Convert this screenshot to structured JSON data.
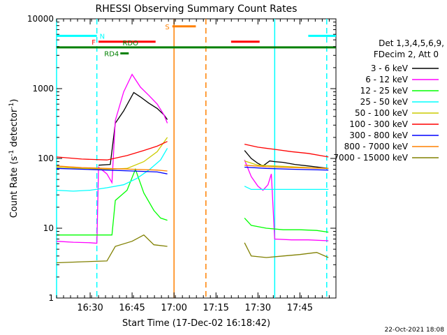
{
  "chart_data": {
    "type": "line",
    "title": "RHESSI Observing Summary Count Rates",
    "xlabel": "Start Time (17-Dec-02 16:18:42)",
    "ylabel": "Count Rate (s⁻¹ detector⁻¹)",
    "ylabel_parts": {
      "main": "Count Rate (s",
      "sup": "-1",
      "mid": " detector",
      "sup2": "-1",
      "end": ")"
    },
    "y_scale": "log",
    "ylim": [
      1,
      10000
    ],
    "xlim_minutes": [
      16.3,
      17.965
    ],
    "x_ticks": [
      {
        "label": "16:30",
        "hour": 16.5
      },
      {
        "label": "16:45",
        "hour": 16.75
      },
      {
        "label": "17:00",
        "hour": 17.0
      },
      {
        "label": "17:15",
        "hour": 17.25
      },
      {
        "label": "17:30",
        "hour": 17.5
      },
      {
        "label": "17:45",
        "hour": 17.75
      }
    ],
    "y_ticks": [
      {
        "label": "1",
        "value": 1
      },
      {
        "label": "10",
        "value": 10
      },
      {
        "label": "100",
        "value": 100
      },
      {
        "label": "1000",
        "value": 1000
      },
      {
        "label": "10000",
        "value": 10000
      }
    ],
    "legend": {
      "header": [
        "Det 1,3,4,5,6,9,",
        "FDecim 2, Att 0"
      ],
      "placement": "right"
    },
    "series": [
      {
        "name": "3 - 6 keV",
        "color": "#000000",
        "segments": [
          [
            [
              16.55,
              80
            ],
            [
              16.62,
              82
            ],
            [
              16.65,
              320
            ],
            [
              16.7,
              480
            ],
            [
              16.73,
              650
            ],
            [
              16.76,
              880
            ],
            [
              16.8,
              760
            ],
            [
              16.85,
              620
            ],
            [
              16.9,
              520
            ],
            [
              16.94,
              420
            ],
            [
              16.96,
              360
            ]
          ],
          [
            [
              17.42,
              130
            ],
            [
              17.46,
              100
            ],
            [
              17.5,
              85
            ],
            [
              17.53,
              78
            ],
            [
              17.57,
              92
            ],
            [
              17.6,
              90
            ],
            [
              17.65,
              88
            ],
            [
              17.72,
              82
            ],
            [
              17.8,
              78
            ],
            [
              17.86,
              75
            ],
            [
              17.92,
              72
            ]
          ]
        ]
      },
      {
        "name": "6 - 12 keV",
        "color": "#ff00ff",
        "segments": [
          [
            [
              16.3,
              6.5
            ],
            [
              16.4,
              6.3
            ],
            [
              16.5,
              6.2
            ],
            [
              16.54,
              6.1
            ],
            [
              16.55,
              75
            ],
            [
              16.6,
              60
            ],
            [
              16.63,
              45
            ],
            [
              16.65,
              350
            ],
            [
              16.7,
              900
            ],
            [
              16.75,
              1600
            ],
            [
              16.8,
              1050
            ],
            [
              16.85,
              800
            ],
            [
              16.9,
              600
            ],
            [
              16.94,
              420
            ],
            [
              16.96,
              320
            ]
          ],
          [
            [
              17.42,
              95
            ],
            [
              17.46,
              55
            ],
            [
              17.5,
              40
            ],
            [
              17.53,
              35
            ],
            [
              17.56,
              42
            ],
            [
              17.58,
              60
            ],
            [
              17.6,
              7
            ],
            [
              17.7,
              6.8
            ],
            [
              17.8,
              6.8
            ],
            [
              17.92,
              6.6
            ]
          ]
        ]
      },
      {
        "name": "12 - 25 keV",
        "color": "#00ff00",
        "segments": [
          [
            [
              16.3,
              8
            ],
            [
              16.45,
              8
            ],
            [
              16.63,
              8
            ],
            [
              16.65,
              25
            ],
            [
              16.72,
              35
            ],
            [
              16.77,
              70
            ],
            [
              16.82,
              32
            ],
            [
              16.88,
              18
            ],
            [
              16.92,
              14
            ],
            [
              16.96,
              13
            ]
          ],
          [
            [
              17.42,
              14
            ],
            [
              17.46,
              11
            ],
            [
              17.55,
              10
            ],
            [
              17.65,
              9.5
            ],
            [
              17.75,
              9.5
            ],
            [
              17.85,
              9.3
            ],
            [
              17.92,
              8.8
            ]
          ]
        ]
      },
      {
        "name": "25 - 50 keV",
        "color": "#00ffff",
        "segments": [
          [
            [
              16.3,
              35
            ],
            [
              16.4,
              34
            ],
            [
              16.5,
              35
            ],
            [
              16.6,
              38
            ],
            [
              16.7,
              42
            ],
            [
              16.78,
              52
            ],
            [
              16.85,
              68
            ],
            [
              16.92,
              95
            ],
            [
              16.96,
              140
            ]
          ],
          [
            [
              17.42,
              40
            ],
            [
              17.46,
              36
            ],
            [
              17.55,
              36
            ],
            [
              17.65,
              36
            ],
            [
              17.75,
              36
            ],
            [
              17.85,
              36
            ],
            [
              17.92,
              36
            ]
          ]
        ]
      },
      {
        "name": "50 - 100 keV",
        "color": "#cccc00",
        "segments": [
          [
            [
              16.3,
              75
            ],
            [
              16.45,
              72
            ],
            [
              16.6,
              70
            ],
            [
              16.72,
              72
            ],
            [
              16.82,
              90
            ],
            [
              16.9,
              125
            ],
            [
              16.96,
              200
            ]
          ],
          [
            [
              17.42,
              92
            ],
            [
              17.5,
              80
            ],
            [
              17.6,
              78
            ],
            [
              17.7,
              76
            ],
            [
              17.8,
              74
            ],
            [
              17.92,
              72
            ]
          ]
        ]
      },
      {
        "name": "100 - 300 keV",
        "color": "#ff0000",
        "segments": [
          [
            [
              16.3,
              105
            ],
            [
              16.45,
              98
            ],
            [
              16.6,
              95
            ],
            [
              16.72,
              110
            ],
            [
              16.82,
              130
            ],
            [
              16.9,
              150
            ],
            [
              16.96,
              175
            ]
          ],
          [
            [
              17.42,
              160
            ],
            [
              17.5,
              145
            ],
            [
              17.6,
              135
            ],
            [
              17.7,
              125
            ],
            [
              17.8,
              118
            ],
            [
              17.92,
              105
            ]
          ]
        ]
      },
      {
        "name": "300 - 800 keV",
        "color": "#0000ff",
        "segments": [
          [
            [
              16.3,
              72
            ],
            [
              16.45,
              70
            ],
            [
              16.6,
              68
            ],
            [
              16.75,
              66
            ],
            [
              16.9,
              64
            ],
            [
              16.96,
              60
            ]
          ],
          [
            [
              17.42,
              75
            ],
            [
              17.55,
              72
            ],
            [
              17.7,
              70
            ],
            [
              17.92,
              68
            ]
          ]
        ]
      },
      {
        "name": "800 - 7000 keV",
        "color": "#ff8000",
        "segments": [
          [
            [
              16.3,
              78
            ],
            [
              16.45,
              74
            ],
            [
              16.6,
              72
            ],
            [
              16.75,
              70
            ],
            [
              16.9,
              68
            ],
            [
              16.96,
              66
            ]
          ],
          [
            [
              17.42,
              80
            ],
            [
              17.55,
              76
            ],
            [
              17.7,
              74
            ],
            [
              17.92,
              72
            ]
          ]
        ]
      },
      {
        "name": "7000 - 15000 keV",
        "color": "#808000",
        "segments": [
          [
            [
              16.3,
              3.2
            ],
            [
              16.45,
              3.3
            ],
            [
              16.6,
              3.4
            ],
            [
              16.65,
              5.5
            ],
            [
              16.75,
              6.5
            ],
            [
              16.82,
              8.0
            ],
            [
              16.88,
              5.8
            ],
            [
              16.96,
              5.5
            ]
          ],
          [
            [
              17.42,
              6.2
            ],
            [
              17.46,
              4.0
            ],
            [
              17.55,
              3.8
            ],
            [
              17.65,
              4.0
            ],
            [
              17.75,
              4.2
            ],
            [
              17.85,
              4.5
            ],
            [
              17.92,
              3.8
            ]
          ]
        ]
      }
    ],
    "annotations": [
      {
        "label": "N",
        "color": "#00ffff",
        "y": 5700,
        "x_ranges": [
          [
            16.3,
            16.54
          ],
          [
            17.8,
            17.965
          ]
        ]
      },
      {
        "label": "S",
        "color": "#ff8000",
        "y": 7800,
        "x_ranges": [
          [
            16.99,
            17.13
          ]
        ]
      },
      {
        "label": "F",
        "color": "#ff0000",
        "y": 4700,
        "x_ranges": [
          [
            16.55,
            16.89
          ],
          [
            17.34,
            17.51
          ]
        ]
      },
      {
        "label": "RDO",
        "color": "#008000",
        "y": 3900,
        "x_ranges": [
          [
            16.3,
            17.965
          ]
        ]
      },
      {
        "label": "RD4",
        "color": "#008000",
        "y": 3200,
        "x_ranges": [
          [
            16.68,
            16.73
          ]
        ]
      }
    ],
    "vertical_markers": [
      {
        "hour": 16.3,
        "color": "#00ffff",
        "style": "solid"
      },
      {
        "hour": 16.54,
        "color": "#00ffff",
        "style": "dashed"
      },
      {
        "hour": 17.0,
        "color": "#ff8000",
        "style": "solid"
      },
      {
        "hour": 17.19,
        "color": "#ff8000",
        "style": "dashed"
      },
      {
        "hour": 17.6,
        "color": "#00ffff",
        "style": "solid"
      },
      {
        "hour": 17.91,
        "color": "#00ffff",
        "style": "dashed"
      }
    ]
  },
  "footer": {
    "timestamp": "22-Oct-2021 18:08"
  }
}
